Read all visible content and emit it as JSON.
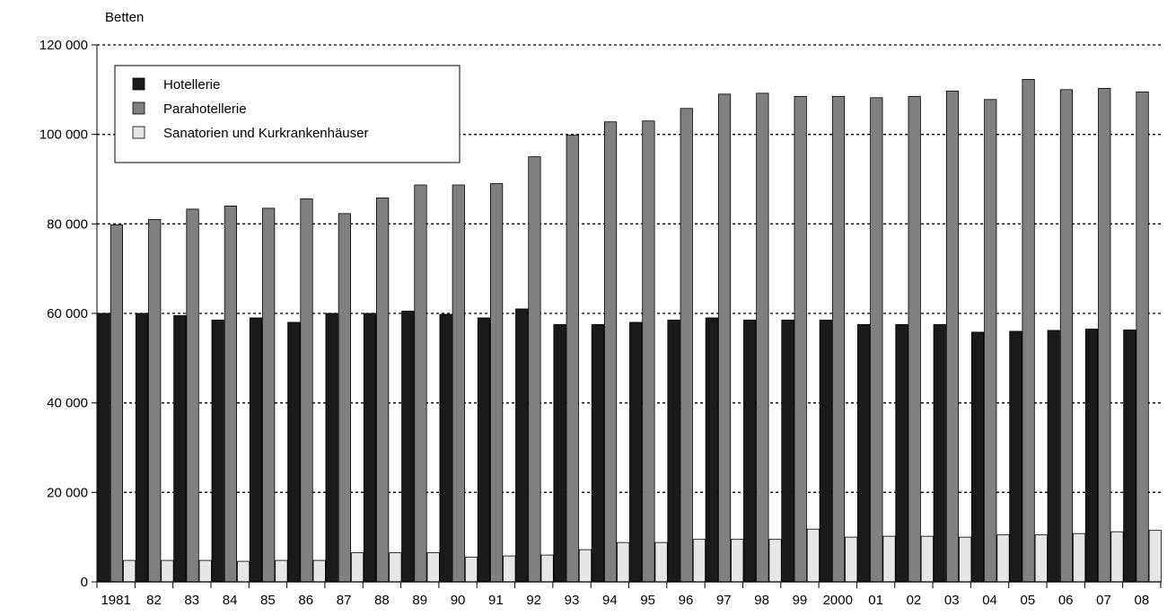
{
  "chart_data": {
    "type": "bar",
    "title": "",
    "xlabel": "",
    "ylabel": "Betten",
    "ylim": [
      0,
      120000
    ],
    "y_ticks": [
      0,
      20000,
      40000,
      60000,
      80000,
      100000,
      120000
    ],
    "y_tick_labels": [
      "0",
      "20 000",
      "40 000",
      "60 000",
      "80 000",
      "100 000",
      "120 000"
    ],
    "grid": "horizontal dotted",
    "legend_position": "top-left",
    "categories": [
      "1981",
      "82",
      "83",
      "84",
      "85",
      "86",
      "87",
      "88",
      "89",
      "90",
      "91",
      "92",
      "93",
      "94",
      "95",
      "96",
      "97",
      "98",
      "99",
      "2000",
      "01",
      "02",
      "03",
      "04",
      "05",
      "06",
      "07",
      "08"
    ],
    "series": [
      {
        "name": "Hotellerie",
        "color": "#1a1a1a",
        "values": [
          60000,
          60000,
          59500,
          58500,
          59000,
          58000,
          60000,
          60000,
          60500,
          59800,
          59000,
          61000,
          57500,
          57500,
          58000,
          58500,
          59000,
          58500,
          58500,
          58500,
          57500,
          57500,
          57500,
          55800,
          56000,
          56200,
          56500,
          56300
        ]
      },
      {
        "name": "Parahotellerie",
        "color": "#808080",
        "values": [
          79800,
          81000,
          83300,
          84000,
          83500,
          85600,
          82300,
          85800,
          88700,
          88700,
          89000,
          95000,
          99800,
          102800,
          103000,
          105800,
          109000,
          109200,
          108500,
          108500,
          108200,
          108500,
          109700,
          107800,
          112300,
          110000,
          110300,
          109500
        ]
      },
      {
        "name": "Sanatorien und Kurkrankenhäuser",
        "color": "#e6e6e6",
        "values": [
          4800,
          4800,
          4800,
          4600,
          4800,
          4800,
          6500,
          6500,
          6500,
          5500,
          5800,
          6000,
          7200,
          8800,
          8800,
          9500,
          9500,
          9500,
          11800,
          10000,
          10200,
          10200,
          10000,
          10500,
          10500,
          10800,
          11200,
          11500
        ]
      }
    ]
  }
}
